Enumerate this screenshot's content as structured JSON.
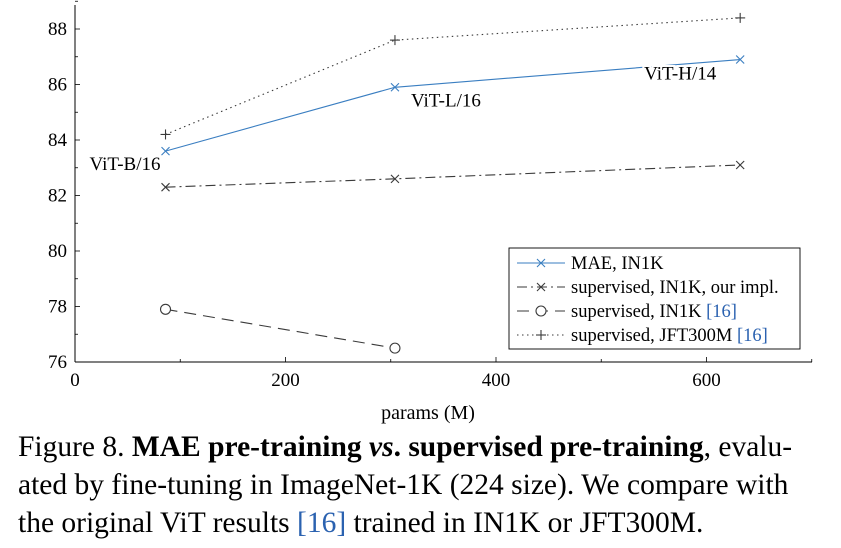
{
  "chart_data": {
    "type": "line",
    "xlabel": "params (M)",
    "ylabel": "",
    "xlim": [
      0,
      700
    ],
    "ylim": [
      76,
      89
    ],
    "x_ticks": [
      0,
      200,
      400,
      600
    ],
    "y_ticks": [
      76,
      78,
      80,
      82,
      84,
      86,
      88
    ],
    "grid": false,
    "legend_position": "bottom-right",
    "series": [
      {
        "name": "MAE, IN1K",
        "color": "#3a7ec1",
        "linestyle": "solid",
        "marker": "x",
        "points": [
          [
            86,
            83.6
          ],
          [
            304,
            85.9
          ],
          [
            632,
            86.9
          ]
        ]
      },
      {
        "name": "supervised, IN1K, our impl.",
        "color": "#3a3a3a",
        "linestyle": "dashdot",
        "marker": "x",
        "points": [
          [
            86,
            82.3
          ],
          [
            304,
            82.6
          ],
          [
            632,
            83.1
          ]
        ]
      },
      {
        "name": "supervised, IN1K",
        "cite": "[16]",
        "color": "#3a3a3a",
        "linestyle": "dashed",
        "marker": "circle",
        "points": [
          [
            86,
            77.9
          ],
          [
            304,
            76.5
          ]
        ]
      },
      {
        "name": "supervised, JFT300M",
        "cite": "[16]",
        "color": "#3a3a3a",
        "linestyle": "dotted",
        "marker": "plus",
        "points": [
          [
            86,
            84.2
          ],
          [
            304,
            87.6
          ],
          [
            632,
            88.4
          ]
        ]
      }
    ],
    "annotations": [
      {
        "text": "ViT-B/16",
        "x": 86,
        "y": 83.6
      },
      {
        "text": "ViT-L/16",
        "x": 304,
        "y": 85.9
      },
      {
        "text": "ViT-H/14",
        "x": 632,
        "y": 86.9
      }
    ]
  },
  "caption": {
    "figure_label": "Figure 8.",
    "bold_1": "MAE pre-training ",
    "bold_italic": "vs",
    "bold_2": ". supervised pre-training",
    "text_1": ", evalu-",
    "line_2": "ated by fine-tuning in ImageNet-1K (224 size). We compare with",
    "line_3_a": "the original ViT results ",
    "line_3_cite": "[16]",
    "line_3_b": " trained in IN1K or JFT300M."
  }
}
